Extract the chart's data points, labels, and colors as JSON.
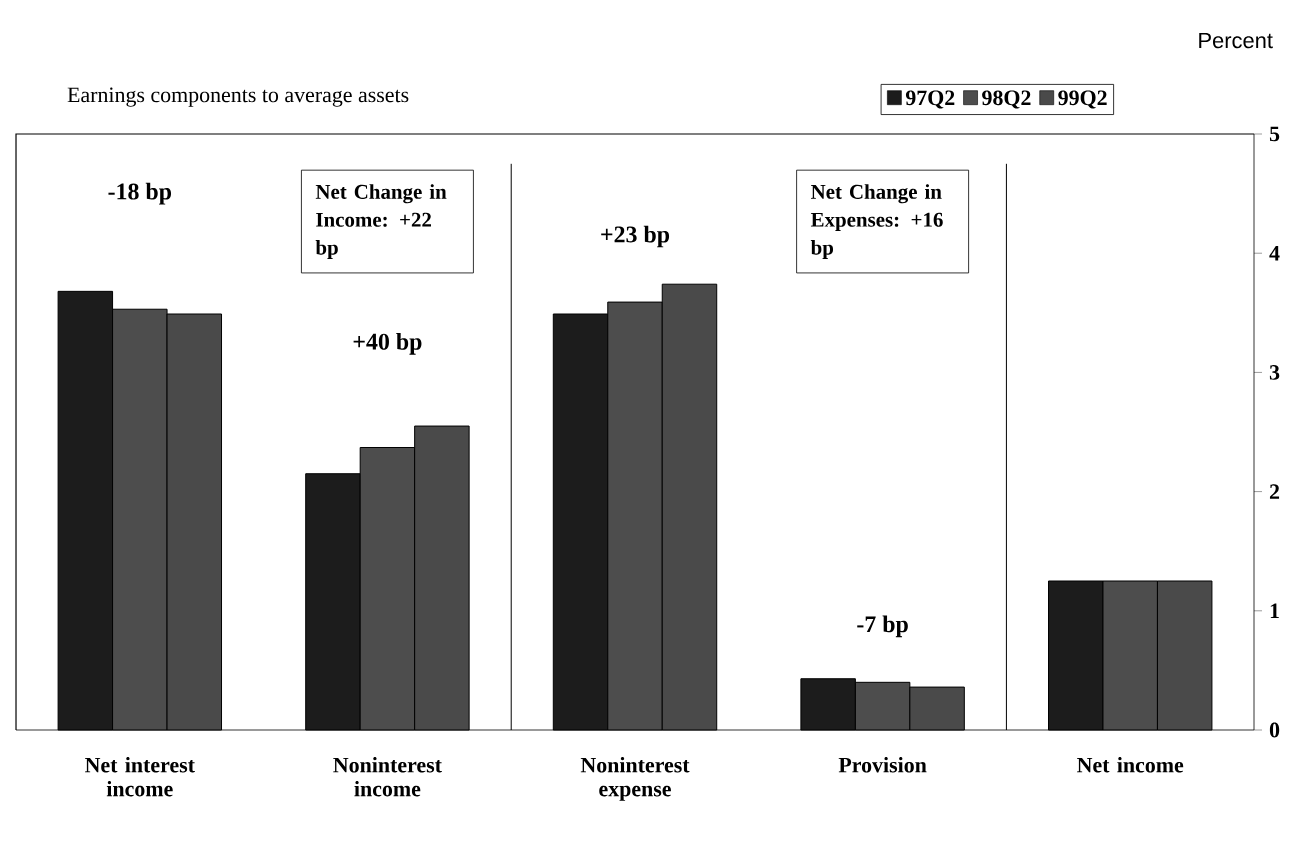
{
  "chart_data": {
    "type": "bar",
    "subtitle": "Earnings components to average assets",
    "ylabel": "Percent",
    "categories": [
      "Net interest income",
      "Noninterest income",
      "Noninterest expense",
      "Provision",
      "Net income"
    ],
    "series": [
      {
        "name": "97Q2",
        "color": "#1c1c1c",
        "values": [
          3.68,
          2.15,
          3.49,
          0.43,
          1.25
        ]
      },
      {
        "name": "98Q2",
        "color": "#4d4d4d",
        "values": [
          3.53,
          2.37,
          3.59,
          0.4,
          1.25
        ]
      },
      {
        "name": "99Q2",
        "color": "#4a4a4a",
        "values": [
          3.49,
          2.55,
          3.74,
          0.36,
          1.25
        ]
      }
    ],
    "ylim": [
      0,
      5
    ],
    "yticks": [
      0,
      1,
      2,
      3,
      4,
      5
    ],
    "legend": "top right",
    "grid": false,
    "annotations": [
      "-18 bp",
      "+40 bp",
      "+23 bp",
      "-7 bp",
      "Net Change in Income: +22 bp",
      "Net Change in Expenses: +16 bp"
    ]
  }
}
